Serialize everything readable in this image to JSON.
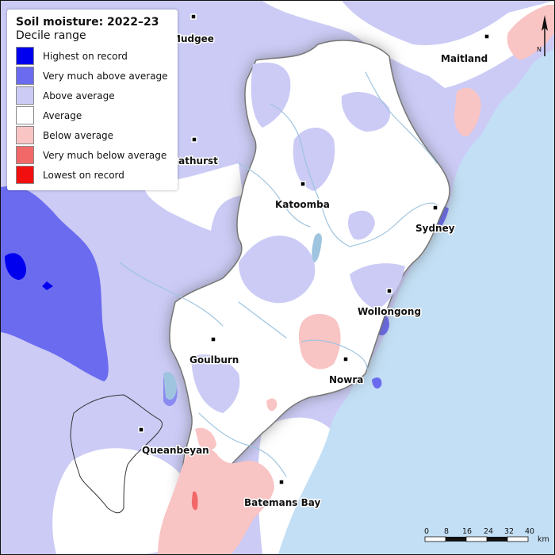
{
  "legend": {
    "title": "Soil moisture: 2022–23",
    "subtitle": "Decile range",
    "items": [
      {
        "label": "Highest on record",
        "color": "#0000ee"
      },
      {
        "label": "Very much above average",
        "color": "#6b6bf0"
      },
      {
        "label": "Above average",
        "color": "#cbcbf6"
      },
      {
        "label": "Average",
        "color": "#ffffff"
      },
      {
        "label": "Below average",
        "color": "#f9c4c4"
      },
      {
        "label": "Very much below average",
        "color": "#f26868"
      },
      {
        "label": "Lowest on record",
        "color": "#f20f0f"
      }
    ]
  },
  "towns": {
    "mudgee": "Mudgee",
    "maitland": "Maitland",
    "bathurst": "Bathurst",
    "katoomba": "Katoomba",
    "sydney": "Sydney",
    "wollongong": "Wollongong",
    "goulburn": "Goulburn",
    "nowra": "Nowra",
    "queanbeyan": "Queanbeyan",
    "batemans_bay": "Batemans Bay"
  },
  "north_label": "N",
  "scale": {
    "ticks": [
      "0",
      "8",
      "16",
      "24",
      "32",
      "40"
    ],
    "unit": "km"
  },
  "colors": {
    "ocean": "#c3dff5",
    "river": "#9fc4df",
    "catchment_outline": "#777777"
  }
}
